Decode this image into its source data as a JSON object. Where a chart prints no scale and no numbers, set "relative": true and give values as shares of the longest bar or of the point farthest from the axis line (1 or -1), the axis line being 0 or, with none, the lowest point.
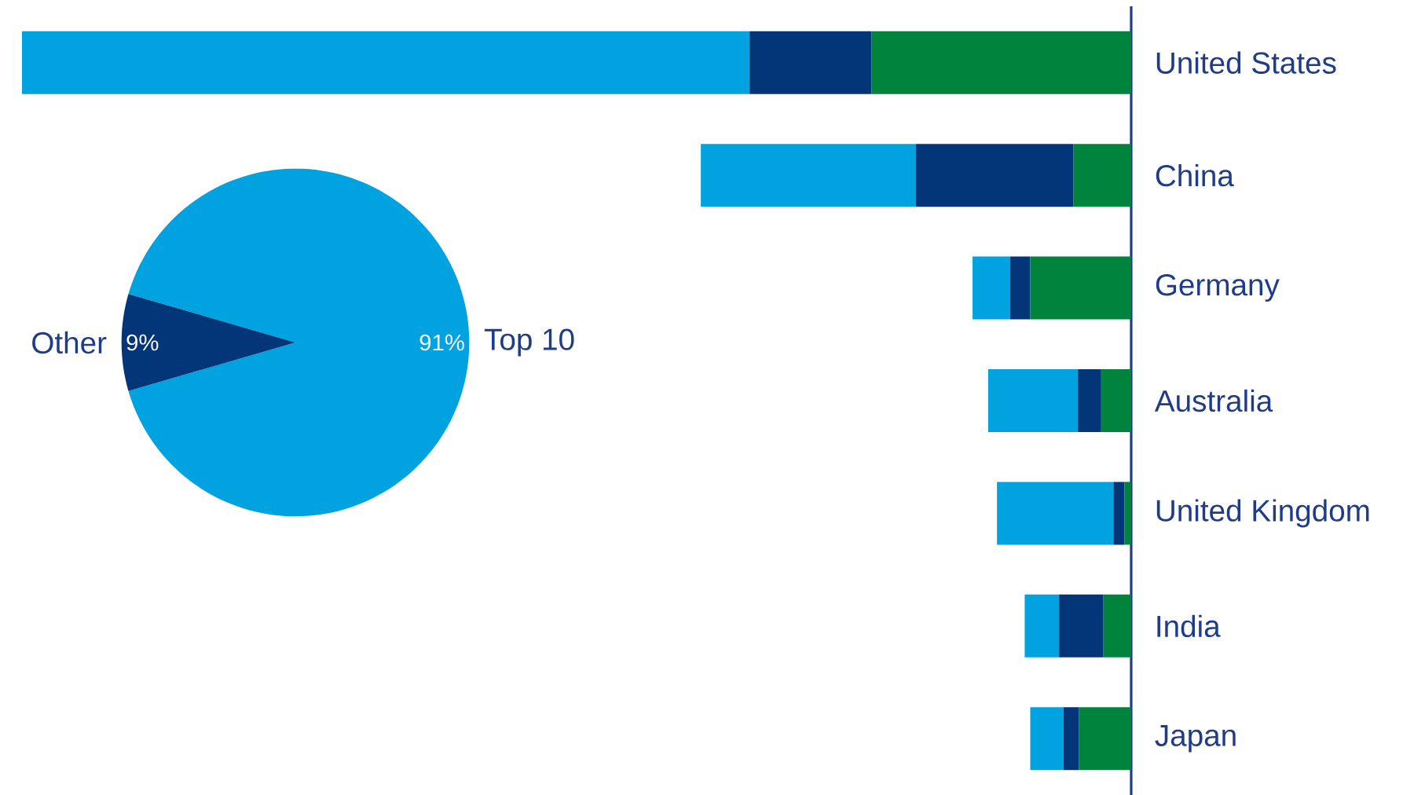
{
  "chart_data": [
    {
      "type": "bar",
      "orientation": "horizontal",
      "stacked": true,
      "relative": true,
      "categories": [
        "United States",
        "China",
        "Germany",
        "Australia",
        "United Kingdom",
        "India",
        "Japan"
      ],
      "series": [
        {
          "color": "#00843d",
          "values": [
            0.234,
            0.052,
            0.091,
            0.027,
            0.006,
            0.025,
            0.047
          ]
        },
        {
          "color": "#033679",
          "values": [
            0.11,
            0.142,
            0.018,
            0.021,
            0.01,
            0.04,
            0.014
          ]
        },
        {
          "color": "#00a3e0",
          "values": [
            0.656,
            0.194,
            0.034,
            0.081,
            0.105,
            0.031,
            0.03
          ]
        }
      ]
    },
    {
      "type": "pie",
      "categories": [
        "Top 10",
        "Other"
      ],
      "values": [
        91,
        9
      ],
      "colors": [
        "#00a3e0",
        "#033679"
      ],
      "value_labels": [
        "91%",
        "9%"
      ]
    }
  ]
}
